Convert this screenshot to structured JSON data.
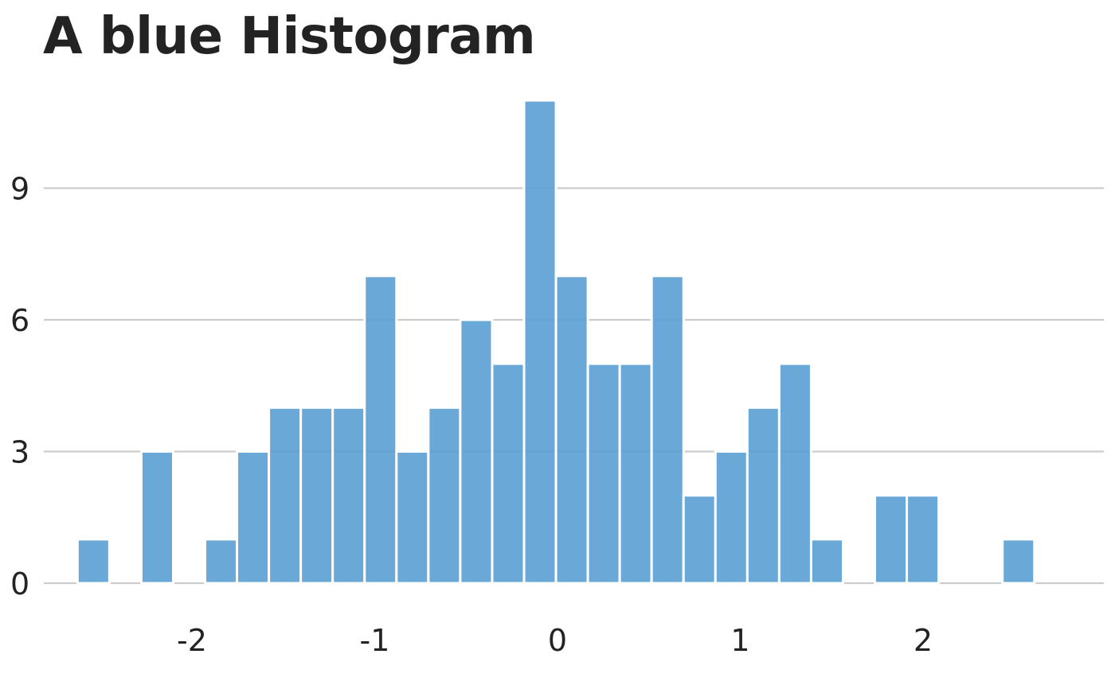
{
  "chart_data": {
    "type": "bar",
    "title": "A blue Histogram",
    "xlabel": "",
    "ylabel": "",
    "bin_width": 0.1745,
    "x_first_bin_left": -2.626,
    "values": [
      1,
      0,
      3,
      0,
      1,
      3,
      4,
      4,
      4,
      7,
      3,
      4,
      6,
      5,
      11,
      7,
      5,
      5,
      7,
      2,
      3,
      4,
      5,
      1,
      0,
      2,
      2,
      0,
      0,
      1
    ],
    "xlim": [
      -2.8,
      3.0
    ],
    "ylim": [
      0,
      11
    ],
    "x_ticks": [
      -2,
      -1,
      0,
      1,
      2
    ],
    "x_tick_labels": [
      "-2",
      "-1",
      "0",
      "1",
      "2"
    ],
    "y_ticks": [
      0,
      3,
      6,
      9
    ],
    "y_tick_labels": [
      "0",
      "3",
      "6",
      "9"
    ],
    "bar_color": "#5A9FD4",
    "bar_edge_color": "#ffffff",
    "grid_color": "#CCCCCC",
    "text_color": "#232323",
    "grid": true,
    "legend": false
  }
}
